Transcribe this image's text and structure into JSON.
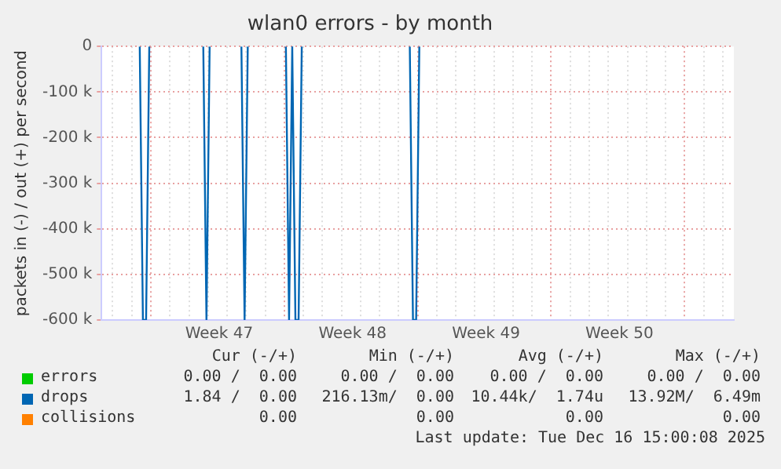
{
  "chart_data": {
    "type": "line",
    "title": "wlan0 errors - by month",
    "ylabel": "packets in (-) / out (+) per second",
    "categories": [
      null,
      null,
      null,
      null,
      null,
      null,
      null,
      null,
      null,
      null,
      null,
      null,
      null,
      null,
      null,
      null,
      null,
      null,
      null,
      null,
      null,
      null,
      null,
      null,
      null,
      null,
      null,
      null,
      null,
      null,
      null,
      null,
      null,
      null,
      null,
      null,
      null,
      "Week 47",
      null,
      null,
      null,
      null,
      null,
      null,
      null,
      null,
      null,
      null,
      null,
      null,
      null,
      null,
      null,
      null,
      null,
      null,
      null,
      null,
      null,
      null,
      null,
      null,
      null,
      null,
      null,
      null,
      null,
      null,
      null,
      null,
      null,
      null,
      null,
      null,
      null,
      null,
      null,
      null,
      null,
      "Week 48",
      null,
      null,
      null,
      null,
      null,
      null,
      null,
      null,
      null,
      null,
      null,
      null,
      null,
      null,
      null,
      null,
      null,
      null,
      null,
      null,
      null,
      null,
      null,
      null,
      null,
      null,
      null,
      null,
      null,
      null,
      null,
      null,
      null,
      null,
      null,
      null,
      null,
      null,
      null,
      null,
      null,
      "Week 49",
      null,
      null,
      null,
      null,
      null,
      null,
      null,
      null,
      null,
      null,
      null,
      null,
      null,
      null,
      null,
      null,
      null,
      null,
      null,
      null,
      null,
      null,
      null,
      null,
      null,
      null,
      null,
      null,
      null,
      null,
      null,
      null,
      null,
      null,
      null,
      null,
      null,
      null,
      null,
      null,
      null,
      "Week 50",
      null,
      null,
      null,
      null,
      null,
      null,
      null,
      null,
      null,
      null,
      null,
      null,
      null,
      null,
      null,
      null,
      null,
      null,
      null,
      null,
      null,
      null,
      null,
      null,
      null,
      null,
      null,
      null,
      null,
      null,
      null,
      null,
      null,
      null,
      null,
      null
    ],
    "series": [
      {
        "name": "errors",
        "color": "#00cc00",
        "values": [
          null,
          null,
          null,
          null,
          null,
          null,
          null,
          null,
          null,
          null,
          null,
          null,
          null,
          null,
          null,
          null,
          null,
          null,
          null,
          null,
          null,
          null,
          null,
          null,
          null,
          null,
          null,
          null,
          null,
          null,
          null,
          null,
          null,
          null,
          null,
          null,
          null,
          null,
          null,
          null,
          null,
          null,
          null,
          null,
          null,
          null,
          null,
          null,
          null,
          null,
          null,
          null,
          null,
          null,
          null,
          null,
          null,
          null,
          null,
          null,
          null,
          null,
          null,
          null,
          null,
          null,
          null,
          null,
          null,
          null,
          null,
          null,
          null,
          null,
          null,
          null,
          null,
          null,
          null,
          null,
          null,
          null,
          null,
          null,
          null,
          null,
          null,
          null,
          null,
          null,
          null,
          null,
          null,
          null,
          null,
          null,
          null,
          null,
          null,
          null,
          null,
          null,
          null,
          null,
          null,
          null,
          null,
          null,
          null,
          null,
          null,
          null,
          null,
          null,
          null,
          null,
          null,
          null,
          null,
          null,
          null,
          null,
          null,
          null,
          null,
          null,
          null,
          null,
          null,
          null,
          null,
          null,
          null,
          null,
          null,
          null,
          null,
          null,
          null,
          null,
          null,
          null,
          null,
          null,
          null,
          null,
          null,
          null,
          null,
          null,
          null,
          null,
          null,
          null,
          null,
          null,
          null,
          null,
          null,
          null,
          null,
          null,
          null,
          null,
          null,
          null,
          null,
          null,
          null,
          null,
          null,
          null,
          null,
          null,
          null,
          null,
          null,
          null,
          null,
          null,
          null,
          null,
          null,
          null,
          null,
          null,
          null,
          null,
          null,
          null,
          null,
          null,
          null,
          null,
          null,
          null,
          null,
          null,
          null,
          null
        ]
      },
      {
        "name": "drops",
        "color": "#0066b3",
        "values": [
          null,
          null,
          null,
          null,
          null,
          null,
          null,
          null,
          null,
          null,
          null,
          null,
          0,
          -600000,
          -600000,
          0,
          null,
          null,
          null,
          null,
          null,
          null,
          null,
          null,
          null,
          null,
          null,
          null,
          null,
          null,
          null,
          null,
          0,
          -600000,
          0,
          null,
          null,
          null,
          null,
          null,
          null,
          null,
          null,
          null,
          0,
          -600000,
          0,
          null,
          null,
          null,
          null,
          null,
          null,
          null,
          null,
          null,
          null,
          null,
          0,
          -600000,
          0,
          -600000,
          -600000,
          0,
          null,
          null,
          null,
          null,
          null,
          null,
          null,
          null,
          null,
          null,
          null,
          null,
          null,
          null,
          null,
          null,
          null,
          null,
          null,
          null,
          null,
          null,
          null,
          null,
          null,
          null,
          null,
          null,
          null,
          null,
          null,
          null,
          null,
          0,
          -600000,
          -600000,
          0,
          null,
          null,
          null,
          null,
          null,
          null,
          null,
          null,
          null,
          null,
          null,
          null,
          null,
          null,
          null,
          null,
          null,
          null,
          null,
          null,
          null,
          null,
          null,
          null,
          null,
          null,
          null,
          null,
          null,
          null,
          null,
          null,
          null,
          null,
          null,
          null,
          null,
          null,
          null,
          null,
          null,
          null,
          null,
          null,
          null,
          null,
          null,
          null,
          null,
          null,
          null,
          null,
          null,
          null,
          null,
          null,
          null,
          null,
          null,
          null,
          null,
          null,
          null,
          null,
          null,
          null,
          null,
          null,
          null,
          null,
          null,
          null,
          null,
          null,
          null,
          null,
          null,
          null,
          null,
          null,
          null,
          null,
          null,
          null,
          null,
          null,
          null,
          null,
          null,
          null,
          null,
          null,
          null,
          null,
          null,
          null,
          null,
          null,
          null
        ]
      },
      {
        "name": "collisions",
        "color": "#ff8000",
        "values": [
          null,
          null,
          null,
          null,
          null,
          null,
          null,
          null,
          null,
          null,
          null,
          null,
          null,
          null,
          null,
          null,
          null,
          null,
          null,
          null,
          null,
          null,
          null,
          null,
          null,
          null,
          null,
          null,
          null,
          null,
          null,
          null,
          null,
          null,
          null,
          null,
          null,
          null,
          null,
          null,
          null,
          null,
          null,
          null,
          null,
          null,
          null,
          null,
          null,
          null,
          null,
          null,
          null,
          null,
          null,
          null,
          null,
          null,
          null,
          null,
          null,
          null,
          null,
          null,
          null,
          null,
          null,
          null,
          null,
          null,
          null,
          null,
          null,
          null,
          null,
          null,
          null,
          null,
          null,
          null,
          null,
          null,
          null,
          null,
          null,
          null,
          null,
          null,
          null,
          null,
          null,
          null,
          null,
          null,
          null,
          null,
          null,
          null,
          null,
          null,
          null,
          null,
          null,
          null,
          null,
          null,
          null,
          null,
          null,
          null,
          null,
          null,
          null,
          null,
          null,
          null,
          null,
          null,
          null,
          null,
          null,
          null,
          null,
          null,
          null,
          null,
          null,
          null,
          null,
          null,
          null,
          null,
          null,
          null,
          null,
          null,
          null,
          null,
          null,
          null,
          null,
          null,
          null,
          null,
          null,
          null,
          null,
          null,
          null,
          null,
          null,
          null,
          null,
          null,
          null,
          null,
          null,
          null,
          null,
          null,
          null,
          null,
          null,
          null,
          null,
          null,
          null,
          null,
          null,
          null,
          null,
          null,
          null,
          null,
          null,
          null,
          null,
          null,
          null,
          null,
          null,
          null,
          null,
          null,
          null,
          null,
          null,
          null,
          null,
          null,
          null,
          null,
          null,
          null,
          null,
          null,
          null,
          null,
          null,
          null
        ]
      }
    ],
    "ylim": [
      -600000,
      0
    ],
    "yticks": [
      {
        "value": -600000,
        "label": "-600 k"
      },
      {
        "value": -500000,
        "label": "-500 k"
      },
      {
        "value": -400000,
        "label": "-400 k"
      },
      {
        "value": -300000,
        "label": "-300 k"
      },
      {
        "value": -200000,
        "label": "-200 k"
      },
      {
        "value": -100000,
        "label": "-100 k"
      },
      0
    ],
    "grid": true,
    "legend": "bottom left",
    "marker": "none",
    "line_style": "solid",
    "annotations": [
      "Cur (-/+)",
      "Min (-/+)",
      "Avg (-/+)",
      "Max (-/+)",
      "0.00 /  0.00",
      "0.00 /  0.00",
      "0.00 /  0.00",
      "0.00 /  0.00",
      "1.84 /  0.00",
      "216.13m/  0.00",
      "10.44k/  1.74u",
      "13.92M/  6.49m",
      "0.00",
      "0.00",
      "0.00",
      "0.00",
      "Last update: Tue Dec 16 15:00:08 2025"
    ]
  }
}
